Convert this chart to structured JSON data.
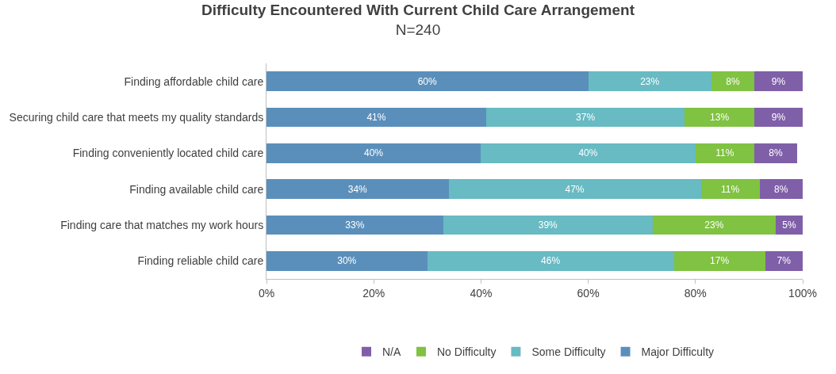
{
  "chart_data": {
    "type": "bar",
    "orientation": "horizontal",
    "stacked": true,
    "title": "Difficulty Encountered With Current Child Care Arrangement",
    "subtitle": "N=240",
    "categories": [
      "Finding affordable child care",
      "Securing child care that meets my quality standards",
      "Finding conveniently located child care",
      "Finding available child care",
      "Finding care that matches my work hours",
      "Finding reliable child care"
    ],
    "series": [
      {
        "name": "Major Difficulty",
        "color": "#5b8fbb",
        "values": [
          60,
          41,
          40,
          34,
          33,
          30
        ],
        "value_labels": [
          "60%",
          "41%",
          "40%",
          "34%",
          "33%",
          "30%"
        ]
      },
      {
        "name": "Some Difficulty",
        "color": "#68bac3",
        "values": [
          23,
          37,
          40,
          47,
          39,
          46
        ],
        "value_labels": [
          "23%",
          "37%",
          "40%",
          "47%",
          "39%",
          "46%"
        ]
      },
      {
        "name": "No Difficulty",
        "color": "#80c241",
        "values": [
          8,
          13,
          11,
          11,
          23,
          17
        ],
        "value_labels": [
          "8%",
          "13%",
          "11%",
          "11%",
          "23%",
          "17%"
        ]
      },
      {
        "name": "N/A",
        "color": "#7f5fa8",
        "values": [
          9,
          9,
          8,
          8,
          5,
          7
        ],
        "value_labels": [
          "9%",
          "9%",
          "8%",
          "8%",
          "5%",
          "7%"
        ]
      }
    ],
    "xlim": [
      0,
      100
    ],
    "xticks": [
      {
        "value": 0,
        "label": "0%"
      },
      {
        "value": 20,
        "label": "20%"
      },
      {
        "value": 40,
        "label": "40%"
      },
      {
        "value": 60,
        "label": "60%"
      },
      {
        "value": 80,
        "label": "80%"
      },
      {
        "value": 100,
        "label": "100%"
      }
    ],
    "grid": false,
    "legend": "bottom"
  }
}
